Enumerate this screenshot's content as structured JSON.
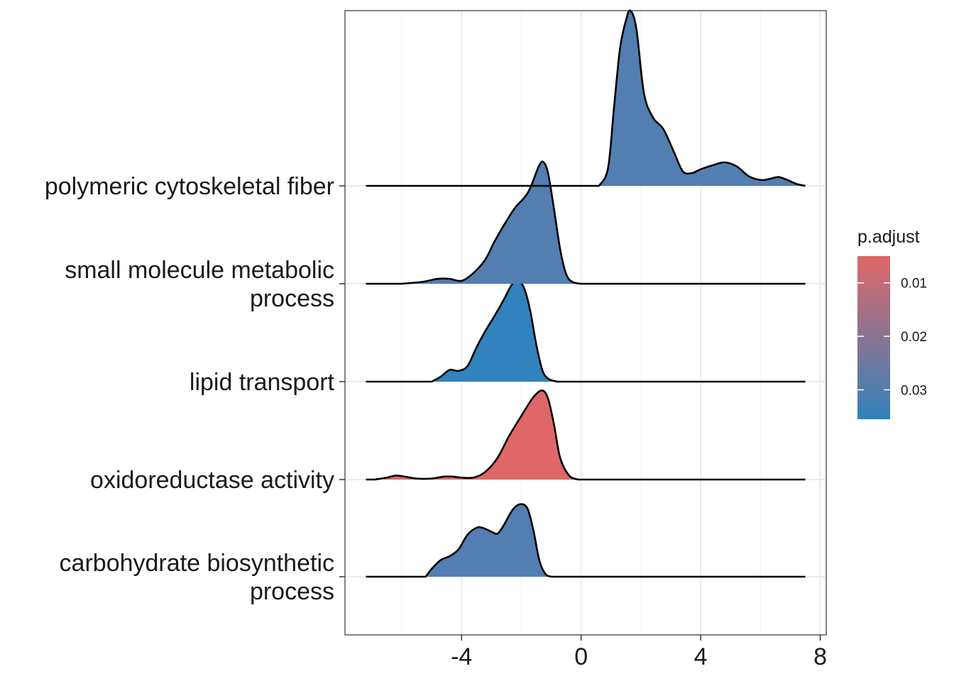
{
  "chart_data": {
    "type": "ridgeline",
    "xlim": [
      -7.9,
      8.2
    ],
    "x_ticks": [
      -4,
      0,
      4,
      8
    ],
    "x_tick_labels": [
      "-4",
      "0",
      "4",
      "8"
    ],
    "grid": true,
    "legend": {
      "title": "p.adjust",
      "placement": "right",
      "ticks": [
        0.01,
        0.02,
        0.03
      ],
      "tick_labels": [
        "0.01",
        "0.02",
        "0.03"
      ],
      "range": [
        0.005,
        0.0355
      ],
      "low_color": "#E06767",
      "high_color": "#3182BD"
    },
    "series": [
      {
        "name": "carbohydrate biosynthetic process",
        "label_lines": [
          "carbohydrate biosynthetic",
          "process"
        ],
        "p_adjust": 0.0297,
        "fill": "#527EB1",
        "x_range": [
          -7.2,
          7.5
        ],
        "density": [
          [
            -5.2,
            0
          ],
          [
            -5.0,
            0.08
          ],
          [
            -4.7,
            0.17
          ],
          [
            -4.4,
            0.21
          ],
          [
            -4.1,
            0.28
          ],
          [
            -3.8,
            0.43
          ],
          [
            -3.5,
            0.5
          ],
          [
            -3.3,
            0.5
          ],
          [
            -3.0,
            0.46
          ],
          [
            -2.8,
            0.44
          ],
          [
            -2.6,
            0.52
          ],
          [
            -2.3,
            0.68
          ],
          [
            -2.05,
            0.74
          ],
          [
            -1.8,
            0.7
          ],
          [
            -1.6,
            0.48
          ],
          [
            -1.4,
            0.17
          ],
          [
            -1.2,
            0.03
          ],
          [
            -1.0,
            0
          ]
        ]
      },
      {
        "name": "oxidoreductase activity",
        "label_lines": [
          "oxidoreductase activity"
        ],
        "p_adjust": 0.0062,
        "fill": "#E06767",
        "x_range": [
          -7.2,
          7.5
        ],
        "density": [
          [
            -6.9,
            0
          ],
          [
            -6.5,
            0.02
          ],
          [
            -6.2,
            0.04
          ],
          [
            -5.9,
            0.03
          ],
          [
            -5.5,
            0.01
          ],
          [
            -5.0,
            0.01
          ],
          [
            -4.6,
            0.03
          ],
          [
            -4.3,
            0.03
          ],
          [
            -4.0,
            0.02
          ],
          [
            -3.6,
            0.02
          ],
          [
            -3.2,
            0.08
          ],
          [
            -2.8,
            0.22
          ],
          [
            -2.4,
            0.45
          ],
          [
            -2.0,
            0.65
          ],
          [
            -1.6,
            0.84
          ],
          [
            -1.3,
            0.91
          ],
          [
            -1.1,
            0.82
          ],
          [
            -0.9,
            0.55
          ],
          [
            -0.7,
            0.22
          ],
          [
            -0.4,
            0.04
          ],
          [
            -0.1,
            0
          ]
        ]
      },
      {
        "name": "lipid transport",
        "label_lines": [
          "lipid transport"
        ],
        "p_adjust": 0.0355,
        "fill": "#3182BD",
        "x_range": [
          -7.2,
          7.5
        ],
        "density": [
          [
            -5.0,
            0
          ],
          [
            -4.7,
            0.05
          ],
          [
            -4.4,
            0.12
          ],
          [
            -4.1,
            0.11
          ],
          [
            -3.8,
            0.16
          ],
          [
            -3.5,
            0.35
          ],
          [
            -3.2,
            0.52
          ],
          [
            -2.9,
            0.67
          ],
          [
            -2.6,
            0.83
          ],
          [
            -2.3,
            1.0
          ],
          [
            -2.1,
            1.03
          ],
          [
            -1.9,
            0.95
          ],
          [
            -1.7,
            0.72
          ],
          [
            -1.5,
            0.38
          ],
          [
            -1.3,
            0.12
          ],
          [
            -1.1,
            0.03
          ],
          [
            -0.8,
            0
          ]
        ]
      },
      {
        "name": "small molecule metabolic process",
        "label_lines": [
          "small molecule metabolic",
          "process"
        ],
        "p_adjust": 0.0297,
        "fill": "#527EB1",
        "x_range": [
          -7.2,
          7.5
        ],
        "density": [
          [
            -6.0,
            0
          ],
          [
            -5.3,
            0.02
          ],
          [
            -4.8,
            0.05
          ],
          [
            -4.4,
            0.05
          ],
          [
            -4.0,
            0.03
          ],
          [
            -3.6,
            0.11
          ],
          [
            -3.2,
            0.25
          ],
          [
            -2.9,
            0.43
          ],
          [
            -2.5,
            0.64
          ],
          [
            -2.2,
            0.78
          ],
          [
            -1.9,
            0.88
          ],
          [
            -1.7,
            0.98
          ],
          [
            -1.4,
            1.21
          ],
          [
            -1.25,
            1.24
          ],
          [
            -1.1,
            1.12
          ],
          [
            -0.9,
            0.75
          ],
          [
            -0.7,
            0.35
          ],
          [
            -0.5,
            0.1
          ],
          [
            -0.3,
            0.02
          ],
          [
            0.0,
            0
          ]
        ]
      },
      {
        "name": "polymeric cytoskeletal fiber",
        "label_lines": [
          "polymeric cytoskeletal fiber"
        ],
        "p_adjust": 0.0297,
        "fill": "#527EB1",
        "x_range": [
          -7.2,
          7.5
        ],
        "density": [
          [
            0.6,
            0
          ],
          [
            0.9,
            0.18
          ],
          [
            1.1,
            0.8
          ],
          [
            1.3,
            1.4
          ],
          [
            1.5,
            1.69
          ],
          [
            1.65,
            1.79
          ],
          [
            1.85,
            1.6
          ],
          [
            2.1,
            0.95
          ],
          [
            2.4,
            0.7
          ],
          [
            2.75,
            0.58
          ],
          [
            3.1,
            0.35
          ],
          [
            3.4,
            0.15
          ],
          [
            3.7,
            0.13
          ],
          [
            4.0,
            0.17
          ],
          [
            4.4,
            0.21
          ],
          [
            4.8,
            0.24
          ],
          [
            5.2,
            0.2
          ],
          [
            5.6,
            0.1
          ],
          [
            6.0,
            0.06
          ],
          [
            6.3,
            0.07
          ],
          [
            6.6,
            0.09
          ],
          [
            6.9,
            0.06
          ],
          [
            7.2,
            0.02
          ],
          [
            7.5,
            0
          ]
        ]
      }
    ]
  }
}
